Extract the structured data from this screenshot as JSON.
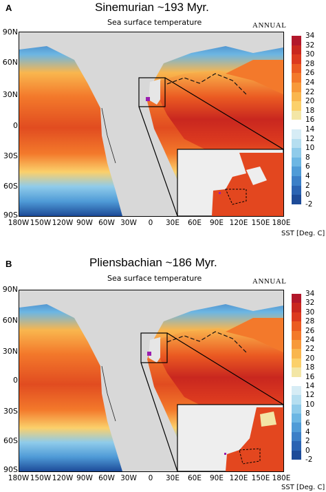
{
  "panels": [
    {
      "letter": "A",
      "title": "Sinemurian ~193 Myr.",
      "subtitle": "Sea surface temperature",
      "annual": "ANNUAL",
      "lat_labels": [
        "90N",
        "60N",
        "30N",
        "0",
        "30S",
        "60S",
        "90S"
      ],
      "lon_labels": [
        "180W",
        "150W",
        "120W",
        "90W",
        "60W",
        "30W",
        "0",
        "30E",
        "60E",
        "90E",
        "120E",
        "150E",
        "180E"
      ],
      "colorbar_label": "SST [Deg. C]"
    },
    {
      "letter": "B",
      "title": "Pliensbachian ~186 Myr.",
      "subtitle": "Sea surface temperature",
      "annual": "ANNUAL",
      "lat_labels": [
        "90N",
        "60N",
        "30N",
        "0",
        "30S",
        "60S",
        "90S"
      ],
      "lon_labels": [
        "180W",
        "150W",
        "120W",
        "90W",
        "60W",
        "30W",
        "0",
        "30E",
        "60E",
        "90E",
        "120E",
        "150E",
        "180E"
      ],
      "colorbar_label": "SST [Deg. C]"
    }
  ],
  "colorbar": {
    "ticks": [
      "34",
      "32",
      "30",
      "28",
      "26",
      "24",
      "22",
      "20",
      "18",
      "16",
      "14",
      "12",
      "10",
      "8",
      "6",
      "4",
      "2",
      "0",
      "-2"
    ],
    "colors": [
      "#b2182b",
      "#c9271f",
      "#dc3a1f",
      "#eb5b22",
      "#f3792b",
      "#f7993a",
      "#f9b64e",
      "#fbd06b",
      "#f3e6a6",
      "#ffffff",
      "#d6ecf5",
      "#b5def0",
      "#8fcbea",
      "#6cb6e3",
      "#4f9bd7",
      "#3b7fc7",
      "#2a63b2",
      "#1d4b98"
    ],
    "palette": {
      "land": "#d8d8d8",
      "ocean_hot": "#d8361f",
      "ocean_cold": "#2a63b2",
      "site_marker": "#9b1fb0"
    }
  }
}
